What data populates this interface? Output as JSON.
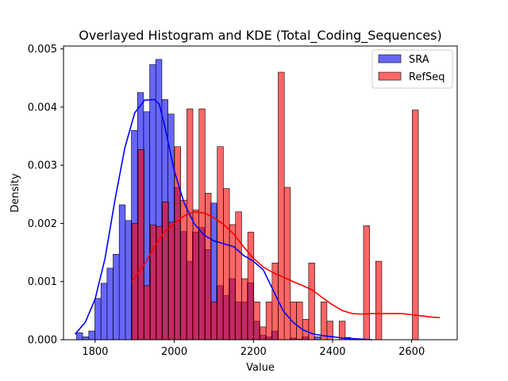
{
  "chart_data": {
    "type": "histogram+kde",
    "title": "Overlayed Histogram and KDE (Total_Coding_Sequences)",
    "xlabel": "Value",
    "ylabel": "Density",
    "xlim": [
      1720,
      2715
    ],
    "ylim": [
      0,
      0.00505
    ],
    "xticks": [
      1800,
      2000,
      2200,
      2400,
      2600
    ],
    "xtick_labels": [
      "1800",
      "2000",
      "2200",
      "2400",
      "2600"
    ],
    "yticks": [
      0,
      0.001,
      0.002,
      0.003,
      0.004,
      0.005
    ],
    "ytick_labels": [
      "0.000",
      "0.001",
      "0.002",
      "0.003",
      "0.004",
      "0.005"
    ],
    "grid": false,
    "legend_position": "top-right",
    "series": [
      {
        "name": "SRA",
        "color": "#0000ff",
        "bin_start": 1753,
        "bin_width": 15.4,
        "densities": [
          0.00012,
          5e-05,
          0.00015,
          0.00071,
          0.00097,
          0.00123,
          0.00147,
          0.00232,
          0.00205,
          0.0036,
          0.00425,
          0.00392,
          0.00473,
          0.00482,
          0.00413,
          0.00388,
          0.00262,
          0.00186,
          0.00135,
          0.00185,
          0.00193,
          0.00155,
          0.00235,
          0.00093,
          0.00076,
          0.00105,
          0.00065,
          0.00065,
          0.00098,
          0.00032,
          8e-05,
          5e-05,
          0.00015,
          0.0,
          0.0,
          3e-05,
          1e-05,
          5e-05,
          0.0,
          5e-05,
          0.0,
          0.0,
          0.0,
          0.0,
          4e-05
        ],
        "kde_x": [
          1750,
          1775,
          1800,
          1825,
          1850,
          1875,
          1900,
          1925,
          1950,
          1962,
          1975,
          2000,
          2025,
          2050,
          2075,
          2100,
          2125,
          2150,
          2175,
          2200,
          2225,
          2250,
          2275,
          2300,
          2325,
          2350,
          2375,
          2400,
          2425,
          2450,
          2475,
          2500
        ],
        "kde_y": [
          0.0001,
          0.0003,
          0.0007,
          0.0014,
          0.0024,
          0.0033,
          0.0039,
          0.00412,
          0.00413,
          0.00405,
          0.0037,
          0.0029,
          0.00235,
          0.002,
          0.0018,
          0.0017,
          0.00165,
          0.0016,
          0.00145,
          0.00135,
          0.0012,
          0.00085,
          0.0005,
          0.0003,
          0.00017,
          0.0001,
          7e-05,
          5e-05,
          3e-05,
          2e-05,
          1e-05,
          0.0
        ]
      },
      {
        "name": "RefSeq",
        "color": "#ff0000",
        "bin_start": 1893,
        "bin_width": 15.4,
        "densities": [
          0.002,
          0.00327,
          0.00093,
          0.00197,
          0.00195,
          0.00237,
          0.00202,
          0.00332,
          0.0024,
          0.00397,
          0.00223,
          0.00397,
          0.00252,
          0.00065,
          0.00332,
          0.0026,
          0.00198,
          0.0022,
          0.00105,
          0.00185,
          0.00065,
          0.00022,
          0.00065,
          0.00132,
          0.0046,
          0.00262,
          0.00065,
          0.00065,
          0.00035,
          0.00132,
          0.0,
          0.00065,
          0.00032,
          0.0,
          0.00032,
          0.0,
          0.0,
          0.0,
          0.00196,
          0.0,
          0.00135,
          0.0,
          0.0,
          0.0,
          0.0,
          0.0,
          0.00395
        ],
        "kde_x": [
          1893,
          1925,
          1950,
          1975,
          2000,
          2025,
          2050,
          2075,
          2100,
          2125,
          2150,
          2175,
          2200,
          2225,
          2250,
          2275,
          2300,
          2325,
          2350,
          2375,
          2400,
          2425,
          2450,
          2475,
          2500,
          2525,
          2550,
          2575,
          2600,
          2625,
          2650,
          2670
        ],
        "kde_y": [
          0.001,
          0.0013,
          0.0016,
          0.00185,
          0.002,
          0.00213,
          0.0022,
          0.00218,
          0.0021,
          0.00198,
          0.00182,
          0.0016,
          0.0014,
          0.00125,
          0.00115,
          0.00108,
          0.001,
          0.00093,
          0.00085,
          0.00072,
          0.0006,
          0.0005,
          0.00045,
          0.00044,
          0.00045,
          0.00045,
          0.00045,
          0.00045,
          0.00043,
          0.00041,
          0.00039,
          0.00038
        ]
      }
    ]
  }
}
